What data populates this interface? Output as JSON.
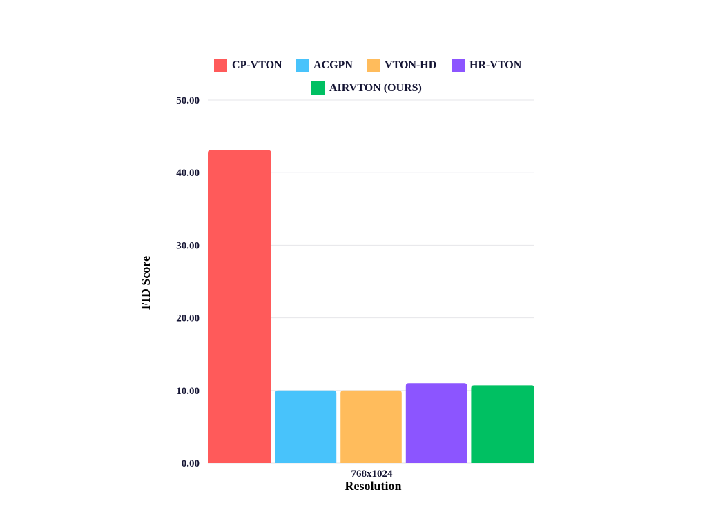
{
  "chart_data": {
    "type": "bar",
    "categories": [
      "768x1024"
    ],
    "series": [
      {
        "name": "CP-VTON",
        "values": [
          43.1
        ],
        "color": "#ff5a5a"
      },
      {
        "name": "ACGPN",
        "values": [
          10.0
        ],
        "color": "#48c3fb"
      },
      {
        "name": "VTON-HD",
        "values": [
          10.0
        ],
        "color": "#ffbc5c"
      },
      {
        "name": "HR-VTON",
        "values": [
          11.0
        ],
        "color": "#8c55ff"
      },
      {
        "name": "AIRVTON (OURS)",
        "values": [
          10.7
        ],
        "color": "#00c062"
      }
    ],
    "xlabel": "Resolution",
    "ylabel": "FID Score",
    "ylim": [
      0,
      50
    ],
    "yticks": [
      "0.00",
      "10.00",
      "20.00",
      "30.00",
      "40.00",
      "50.00"
    ],
    "grid": true,
    "legend_position": "top"
  }
}
